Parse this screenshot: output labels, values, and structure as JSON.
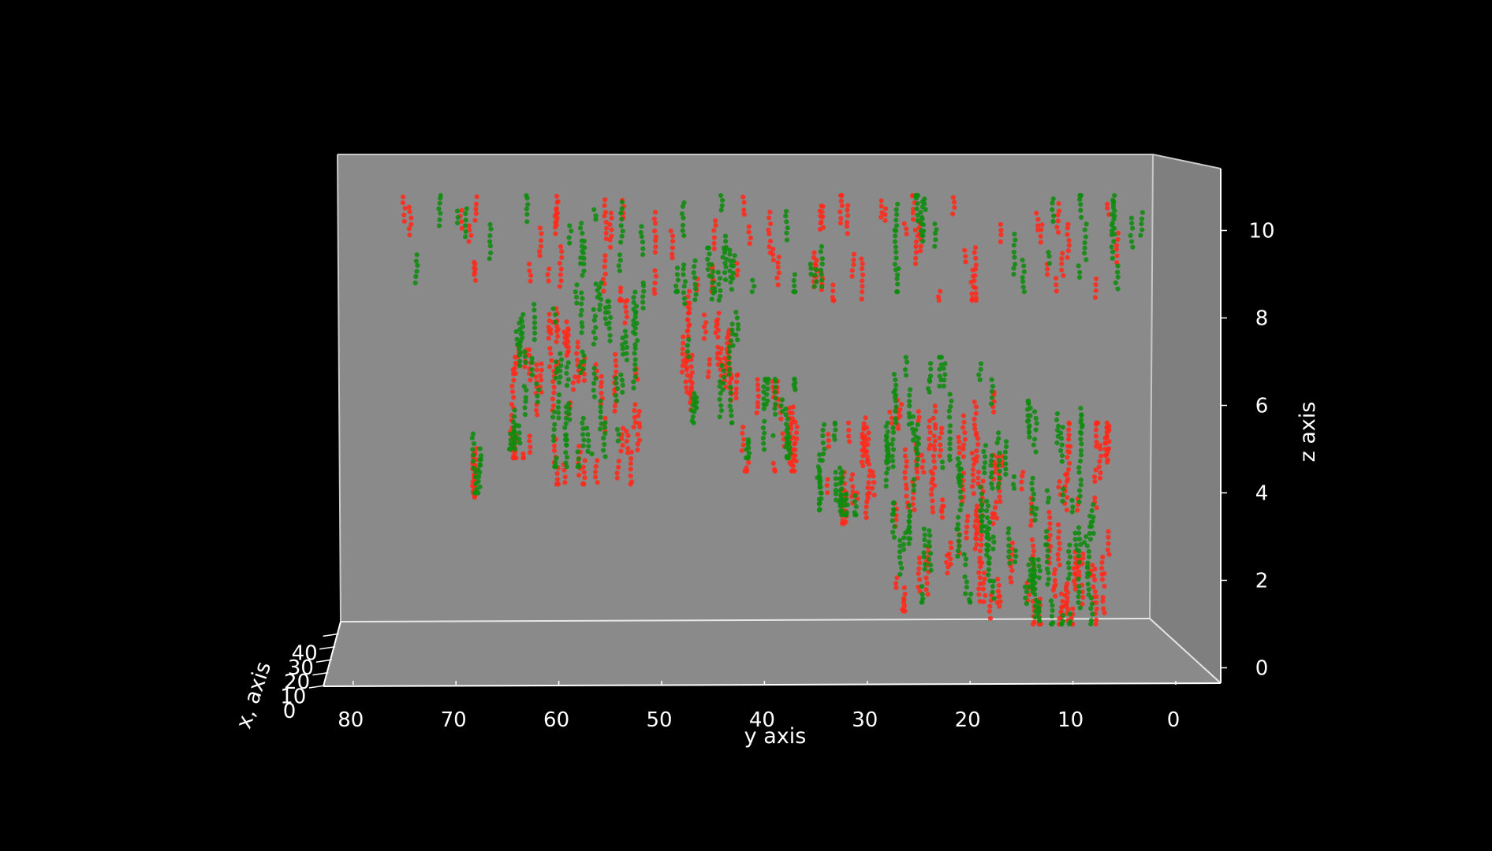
{
  "chart_data": {
    "type": "scatter",
    "projection": "3d",
    "title": "",
    "xlabel": "x, axis",
    "ylabel": "y axis",
    "zlabel": "z axis",
    "xlim": [
      0,
      50
    ],
    "ylim": [
      0,
      84
    ],
    "zlim": [
      0,
      11
    ],
    "y_inverted": true,
    "grid": false,
    "background": "#000000",
    "pane_color": "#8a8a8a",
    "x_ticks": [
      "0",
      "10",
      "20",
      "30",
      "40"
    ],
    "y_ticks": [
      "80",
      "70",
      "60",
      "50",
      "40",
      "30",
      "20",
      "10",
      "0"
    ],
    "z_ticks": [
      "0",
      "2",
      "4",
      "6",
      "8",
      "10"
    ],
    "colors": {
      "series_a": "#ff2a1a",
      "series_b": "#0e8c0e"
    },
    "clusters": [
      {
        "series": 0,
        "y": [
          3,
          76
        ],
        "z": [
          8.4,
          10.8
        ],
        "n": 320
      },
      {
        "series": 1,
        "y": [
          3,
          76
        ],
        "z": [
          8.6,
          10.8
        ],
        "n": 260
      },
      {
        "series": 0,
        "y": [
          68,
          68
        ],
        "z": [
          3.9,
          5.2
        ],
        "n": 26
      },
      {
        "series": 1,
        "y": [
          67,
          69
        ],
        "z": [
          4.0,
          5.6
        ],
        "n": 26
      },
      {
        "series": 0,
        "y": [
          62,
          65
        ],
        "z": [
          4.8,
          7.4
        ],
        "n": 70
      },
      {
        "series": 1,
        "y": [
          62,
          65
        ],
        "z": [
          5.0,
          8.6
        ],
        "n": 70
      },
      {
        "series": 0,
        "y": [
          52,
          61
        ],
        "z": [
          4.2,
          8.4
        ],
        "n": 170
      },
      {
        "series": 1,
        "y": [
          52,
          61
        ],
        "z": [
          4.6,
          8.8
        ],
        "n": 190
      },
      {
        "series": 0,
        "y": [
          43,
          48
        ],
        "z": [
          5.8,
          9.2
        ],
        "n": 110
      },
      {
        "series": 1,
        "y": [
          42,
          48
        ],
        "z": [
          5.6,
          9.6
        ],
        "n": 110
      },
      {
        "series": 0,
        "y": [
          36,
          43
        ],
        "z": [
          4.5,
          6.7
        ],
        "n": 80
      },
      {
        "series": 1,
        "y": [
          36,
          42
        ],
        "z": [
          4.8,
          6.6
        ],
        "n": 70
      },
      {
        "series": 0,
        "y": [
          29,
          36
        ],
        "z": [
          3.3,
          5.8
        ],
        "n": 80
      },
      {
        "series": 1,
        "y": [
          28,
          35
        ],
        "z": [
          3.5,
          5.6
        ],
        "n": 90
      },
      {
        "series": 0,
        "y": [
          18,
          28
        ],
        "z": [
          1.3,
          6.3
        ],
        "n": 230
      },
      {
        "series": 1,
        "y": [
          18,
          28
        ],
        "z": [
          1.5,
          7.1
        ],
        "n": 230
      },
      {
        "series": 0,
        "y": [
          6,
          18
        ],
        "z": [
          1.0,
          5.6
        ],
        "n": 260
      },
      {
        "series": 1,
        "y": [
          8,
          18
        ],
        "z": [
          1.0,
          6.1
        ],
        "n": 250
      }
    ]
  }
}
